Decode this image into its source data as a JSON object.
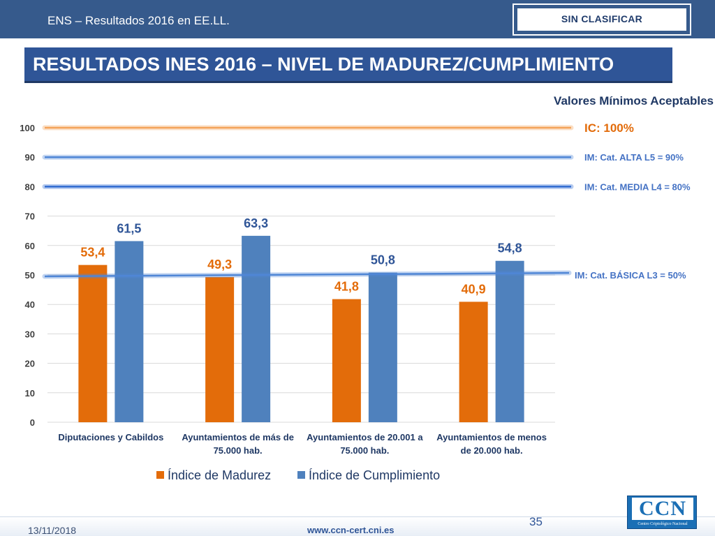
{
  "header": {
    "deck_title": "ENS – Resultados 2016 en EE.LL.",
    "classification": "SIN CLASIFICAR"
  },
  "slide_title": "RESULTADOS INES 2016 – NIVEL DE MADUREZ/CUMPLIMIENTO",
  "reference_panel": {
    "title": "Valores Mínimos Aceptables",
    "lines": [
      {
        "label": "IC: 100%",
        "value": 100,
        "color": "#f4a35a",
        "label_color": "#e26b0a"
      },
      {
        "label": "IM: Cat. ALTA L5 = 90%",
        "value": 90,
        "color": "#4f86d6",
        "label_color": "#4472c4"
      },
      {
        "label": "IM: Cat. MEDIA L4 = 80%",
        "value": 80,
        "color": "#2f6ad0",
        "label_color": "#4472c4"
      },
      {
        "label": "IM: Cat. BÁSICA L3 = 50%",
        "value": 50,
        "color": "#4f86d6",
        "label_color": "#4472c4"
      }
    ]
  },
  "chart_data": {
    "type": "bar",
    "categories": [
      [
        "Diputaciones y Cabildos"
      ],
      [
        "Ayuntamientos de más de",
        "75.000 hab."
      ],
      [
        "Ayuntamientos de 20.001 a",
        "75.000 hab."
      ],
      [
        "Ayuntamientos de menos",
        "de 20.000 hab."
      ]
    ],
    "series": [
      {
        "name": "Índice de Madurez",
        "values": [
          53.4,
          49.3,
          41.8,
          40.9
        ],
        "labels": [
          "53,4",
          "49,3",
          "41,8",
          "40,9"
        ],
        "color": "#e36c0a"
      },
      {
        "name": "Índice de Cumplimiento",
        "values": [
          61.5,
          63.3,
          50.8,
          54.8
        ],
        "labels": [
          "61,5",
          "63,3",
          "50,8",
          "54,8"
        ],
        "color": "#4f81bd"
      }
    ],
    "ylim": [
      0,
      100
    ],
    "yticks": [
      0,
      10,
      20,
      30,
      40,
      50,
      60,
      70,
      80,
      90,
      100
    ],
    "grid": true,
    "legend": "bottom"
  },
  "footer": {
    "date": "13/11/2018",
    "url": "www.ccn-cert.cni.es",
    "page": "35",
    "logo_text": "CCN",
    "logo_caption": "Centro Criptológico Nacional"
  }
}
